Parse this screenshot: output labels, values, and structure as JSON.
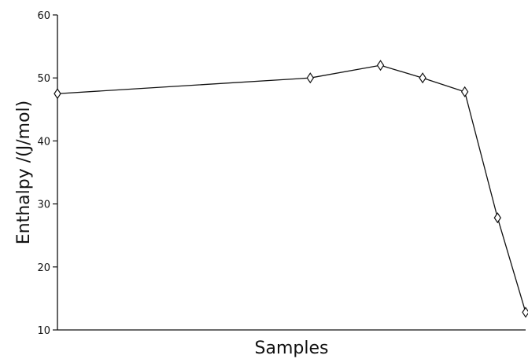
{
  "chart_data": {
    "type": "line",
    "xlabel": "Samples",
    "ylabel": "Enthalpy /(J/mol)",
    "ylim": [
      10,
      60
    ],
    "yticks": [
      10,
      20,
      30,
      40,
      50,
      60
    ],
    "grid": false,
    "marker": "diamond",
    "series": [
      {
        "points": [
          {
            "x": 0.0,
            "y": 47.5
          },
          {
            "x": 0.54,
            "y": 50.0
          },
          {
            "x": 0.69,
            "y": 52.0
          },
          {
            "x": 0.78,
            "y": 50.0
          },
          {
            "x": 0.87,
            "y": 47.8
          },
          {
            "x": 0.94,
            "y": 27.8
          },
          {
            "x": 1.0,
            "y": 12.8
          }
        ]
      }
    ]
  }
}
